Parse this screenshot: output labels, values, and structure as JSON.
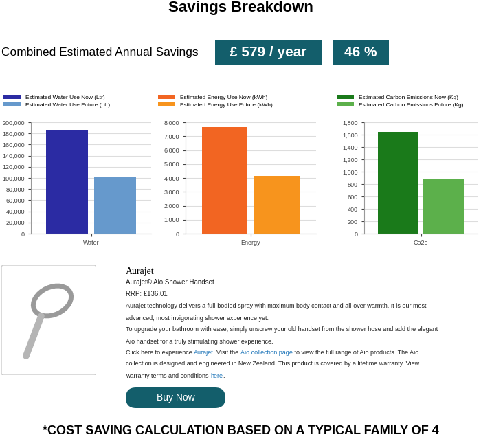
{
  "title": "Savings Breakdown",
  "summary": {
    "label": "Combined Estimated Annual Savings",
    "amount": "£ 579 / year",
    "percent": "46 %"
  },
  "chart_data": [
    {
      "type": "bar",
      "categories": [
        "Water"
      ],
      "series": [
        {
          "name": "Estimated Water Use Now (Ltr)",
          "color": "#2b2ba3",
          "values": [
            186000
          ]
        },
        {
          "name": "Estimated Water Use Future (Ltr)",
          "color": "#6699cc",
          "values": [
            101500
          ]
        }
      ],
      "ylim": [
        0,
        200000
      ],
      "yticks": [
        0,
        {
          "value": 20000,
          "label": "20,000"
        },
        {
          "value": 40000,
          "label": "40,000"
        },
        {
          "value": 60000,
          "label": "60,000"
        },
        {
          "value": 80000,
          "label": "80,000"
        },
        {
          "value": 100000,
          "label": "100,000"
        },
        {
          "value": 120000,
          "label": "120,000"
        },
        {
          "value": 140000,
          "label": "140,000"
        },
        {
          "value": 160000,
          "label": "160,000"
        },
        {
          "value": 180000,
          "label": "180,000"
        },
        {
          "value": 200000,
          "label": "200,000"
        }
      ],
      "grid": true,
      "legend": "upper left"
    },
    {
      "type": "bar",
      "categories": [
        "Energy"
      ],
      "series": [
        {
          "name": "Estimated Energy Use Now (kWh)",
          "color": "#f26522",
          "values": [
            7650
          ]
        },
        {
          "name": "Estimated Energy Use Future (kWh)",
          "color": "#f7941d",
          "values": [
            4150
          ]
        }
      ],
      "ylim": [
        0,
        8000
      ],
      "yticks": [
        0,
        {
          "value": 1000,
          "label": "1,000"
        },
        {
          "value": 2000,
          "label": "2,000"
        },
        {
          "value": 3000,
          "label": "3,000"
        },
        {
          "value": 4000,
          "label": "4,000"
        },
        {
          "value": 5000,
          "label": "5,000"
        },
        {
          "value": 6000,
          "label": "6,000"
        },
        {
          "value": 7000,
          "label": "7,000"
        },
        {
          "value": 8000,
          "label": "8,000"
        }
      ],
      "grid": true,
      "legend": "upper left"
    },
    {
      "type": "bar",
      "categories": [
        "Co2e"
      ],
      "series": [
        {
          "name": "Estimated Carbon Emissions Now (Kg)",
          "color": "#1a7a1a",
          "values": [
            1650
          ]
        },
        {
          "name": "Estimated Carbon Emissions Future (Kg)",
          "color": "#5cb04b",
          "values": [
            890
          ]
        }
      ],
      "ylim": [
        0,
        1800
      ],
      "yticks": [
        0,
        200,
        400,
        600,
        800,
        {
          "value": 1000,
          "label": "1,000"
        },
        {
          "value": 1200,
          "label": "1,200"
        },
        {
          "value": 1400,
          "label": "1,400"
        },
        {
          "value": 1600,
          "label": "1,600"
        },
        {
          "value": 1800,
          "label": "1,800"
        }
      ],
      "grid": true,
      "legend": "upper left"
    }
  ],
  "product": {
    "brand": "Aurajet",
    "name": "Aurajet® Aio Shower Handset",
    "price": "RRP: £136.01",
    "description": [
      [
        {
          "text": "Aurajet technology delivers a full-bodied spray with maximum body contact and all-over warmth. It is our most"
        }
      ],
      [
        {
          "text": "advanced, most invigorating shower experience yet."
        }
      ],
      [
        {
          "text": "To upgrade your bathroom with ease, simply unscrew your old handset from the shower hose and add the elegant"
        }
      ],
      [
        {
          "text": "Aio handset for a truly stimulating shower experience."
        }
      ],
      [
        {
          "text": "Click here to experience "
        },
        {
          "text": "Aurajet",
          "color": "#1a73b8"
        },
        {
          "text": ". Visit the "
        },
        {
          "text": "Aio collection page",
          "color": "#1a73b8"
        },
        {
          "text": " to view the full range of Aio products. The Aio"
        }
      ],
      [
        {
          "text": "collection is designed and engineered in New Zealand. This product is covered by a lifetime warranty. View"
        }
      ],
      [
        {
          "text": "warranty terms and conditions "
        },
        {
          "text": "here",
          "color": "#1a73b8"
        },
        {
          "text": "."
        }
      ]
    ],
    "button": "Buy Now"
  },
  "footnote": "*COST SAVING CALCULATION BASED ON A TYPICAL FAMILY OF 4"
}
